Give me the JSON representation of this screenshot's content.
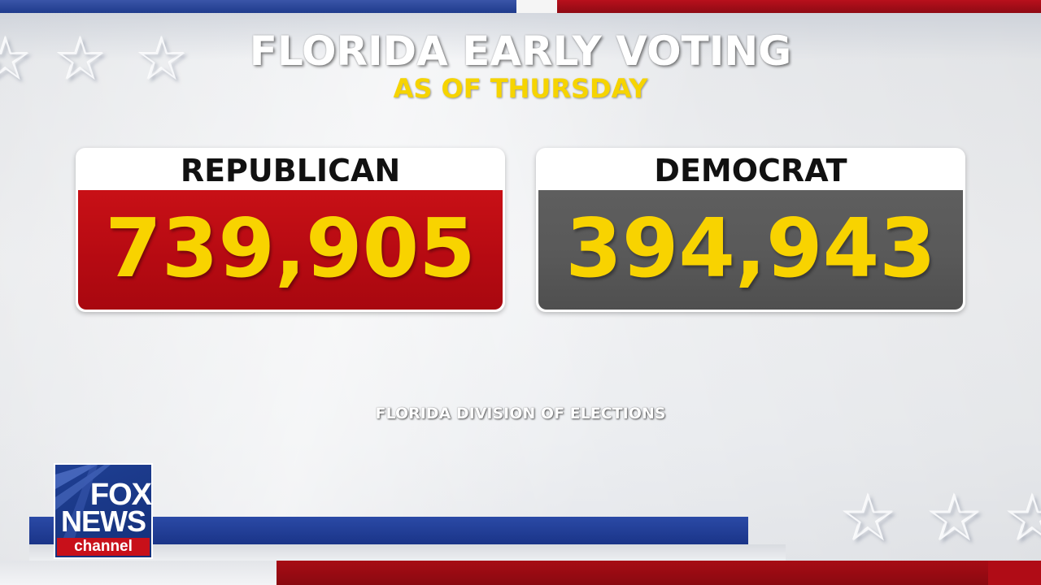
{
  "header": {
    "title": "FLORIDA EARLY VOTING",
    "subtitle": "AS OF THURSDAY"
  },
  "results": [
    {
      "party": "REPUBLICAN",
      "count": "739,905",
      "color": "#c81016"
    },
    {
      "party": "DEMOCRAT",
      "count": "394,943",
      "color": "#5e5e5e"
    }
  ],
  "source": "FLORIDA DIVISION OF ELECTIONS",
  "logo": {
    "line1": "FOX",
    "line2": "NEWS",
    "line3": "channel"
  },
  "colors": {
    "value_text": "#f8d300",
    "subtitle": "#f6d400",
    "stripe_blue": "#1f3b8c",
    "stripe_red": "#a70c15"
  },
  "icons": [
    "star-icon"
  ]
}
